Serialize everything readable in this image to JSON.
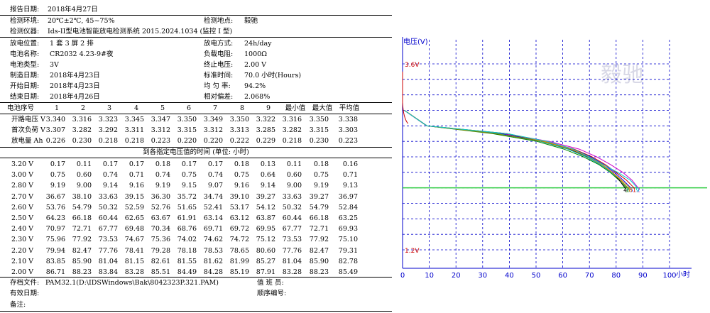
{
  "header": {
    "report_date": {
      "label": "报告日期:",
      "value": "2018年4月27日"
    },
    "env": {
      "label": "检测环境:",
      "value": "20℃±2℃, 45~75%"
    },
    "location": {
      "label": "检测地点:",
      "value": "毅驰"
    },
    "instrument": {
      "label": "检测仪器:",
      "value": "Ids-II型电池智能放电检测系统 2015.2024.1034 (监控 I 型)"
    }
  },
  "info": {
    "left": [
      {
        "label": "放电位置:",
        "value": "1 套 3 屏 2 排"
      },
      {
        "label": "电池名称:",
        "value": "CR2032 4.23-9#夜"
      },
      {
        "label": "电池类型:",
        "value": "3V"
      },
      {
        "label": "制造日期:",
        "value": "2018年4月23日"
      },
      {
        "label": "开始日期:",
        "value": "2018年4月23日"
      },
      {
        "label": "结束日期:",
        "value": "2018年4月26日"
      }
    ],
    "right": [
      {
        "label": "放电方式:",
        "value": "24h/day"
      },
      {
        "label": "负载电阻:",
        "value": "1000Ω"
      },
      {
        "label": "终止电压:",
        "value": "2.00 V"
      },
      {
        "label": "标准时间:",
        "value": "70.0 小时(Hours)"
      },
      {
        "label": "均 匀 率:",
        "value": "94.2%"
      },
      {
        "label": "相对偏差:",
        "value": "2.068%"
      }
    ]
  },
  "battery_table": {
    "header": [
      "电池序号",
      "1",
      "2",
      "3",
      "4",
      "5",
      "6",
      "7",
      "8",
      "9",
      "最小值",
      "最大值",
      "平均值"
    ],
    "rows": [
      [
        "开路电压 V",
        "3.340",
        "3.316",
        "3.323",
        "3.345",
        "3.347",
        "3.350",
        "3.349",
        "3.350",
        "3.322",
        "3.316",
        "3.350",
        "3.338"
      ],
      [
        "首次负荷 V",
        "3.307",
        "3.282",
        "3.292",
        "3.311",
        "3.312",
        "3.315",
        "3.312",
        "3.313",
        "3.285",
        "3.282",
        "3.315",
        "3.303"
      ],
      [
        "放电量  Ah",
        "0.226",
        "0.230",
        "0.218",
        "0.218",
        "0.223",
        "0.220",
        "0.220",
        "0.222",
        "0.229",
        "0.218",
        "0.230",
        "0.223"
      ]
    ]
  },
  "time_table": {
    "title": "到各指定电压值的时间 (单位: 小时)",
    "rows": [
      [
        "3.20 V",
        "0.17",
        "0.11",
        "0.17",
        "0.17",
        "0.18",
        "0.17",
        "0.17",
        "0.18",
        "0.13",
        "0.11",
        "0.18",
        "0.16"
      ],
      [
        "3.00 V",
        "0.75",
        "0.60",
        "0.74",
        "0.71",
        "0.74",
        "0.75",
        "0.74",
        "0.75",
        "0.64",
        "0.60",
        "0.75",
        "0.71"
      ],
      [
        "2.80 V",
        "9.19",
        "9.00",
        "9.14",
        "9.16",
        "9.19",
        "9.15",
        "9.07",
        "9.16",
        "9.14",
        "9.00",
        "9.19",
        "9.13"
      ],
      [
        "2.70 V",
        "36.67",
        "38.10",
        "33.63",
        "39.15",
        "36.30",
        "35.72",
        "34.74",
        "39.10",
        "39.27",
        "33.63",
        "39.27",
        "36.97"
      ],
      [
        "2.60 V",
        "53.76",
        "54.79",
        "50.32",
        "52.59",
        "52.76",
        "51.65",
        "52.41",
        "53.17",
        "54.12",
        "50.32",
        "54.79",
        "52.84"
      ],
      [
        "2.50 V",
        "64.23",
        "66.18",
        "60.44",
        "62.65",
        "63.67",
        "61.91",
        "63.14",
        "63.12",
        "63.87",
        "60.44",
        "66.18",
        "63.25"
      ],
      [
        "2.40 V",
        "70.97",
        "72.71",
        "67.77",
        "69.48",
        "70.34",
        "68.76",
        "69.71",
        "69.72",
        "69.95",
        "67.77",
        "72.71",
        "69.93"
      ],
      [
        "2.30 V",
        "75.96",
        "77.92",
        "73.53",
        "74.67",
        "75.36",
        "74.02",
        "74.62",
        "74.72",
        "75.12",
        "73.53",
        "77.92",
        "75.10"
      ],
      [
        "2.20 V",
        "79.94",
        "82.47",
        "77.76",
        "78.41",
        "79.28",
        "78.18",
        "78.53",
        "78.65",
        "80.60",
        "77.76",
        "82.47",
        "79.31"
      ],
      [
        "2.10 V",
        "83.85",
        "85.90",
        "81.04",
        "81.15",
        "82.61",
        "81.55",
        "81.62",
        "81.99",
        "85.27",
        "81.04",
        "85.90",
        "82.78"
      ],
      [
        "2.00 V",
        "86.71",
        "88.23",
        "83.84",
        "83.28",
        "85.51",
        "84.49",
        "84.28",
        "85.19",
        "87.91",
        "83.28",
        "88.23",
        "85.49"
      ]
    ]
  },
  "footer": {
    "file": {
      "label": "存档文件:",
      "value": "PAM32.1(D:\\IDSWindows\\Bak\\8042323P.321.PAM)"
    },
    "valid_date": {
      "label": "有效日期:",
      "value": ""
    },
    "notes": {
      "label": "备注:",
      "value": ""
    },
    "duty": {
      "label": "值 班 员:",
      "value": ""
    },
    "seq": {
      "label": "顺序编号:",
      "value": ""
    }
  },
  "chart_data": {
    "type": "line",
    "ylabel": "电压(V)",
    "xlabel": "小时",
    "xticks": [
      "0",
      "10",
      "20",
      "30",
      "40",
      "50",
      "60",
      "70",
      "80",
      "90",
      "100"
    ],
    "xlim": [
      0,
      100
    ],
    "ylim": [
      1.2,
      3.6
    ],
    "y_markers": [
      "3.6V",
      "1.2V"
    ],
    "cutoff_line": {
      "y": 2.0,
      "color": "#2ecc40"
    },
    "watermark": "毅驰",
    "colors": {
      "axis": "#0000cc",
      "grid": "#0000cc",
      "marker": "#cc0000",
      "cutoff": "#2ecc40"
    },
    "series": [
      {
        "color": "#cc0000",
        "values": [
          [
            0,
            3.31
          ],
          [
            0.75,
            3.0
          ],
          [
            9.19,
            2.8
          ],
          [
            36.67,
            2.7
          ],
          [
            53.76,
            2.6
          ],
          [
            64.23,
            2.5
          ],
          [
            70.97,
            2.4
          ],
          [
            75.96,
            2.3
          ],
          [
            79.94,
            2.2
          ],
          [
            83.85,
            2.1
          ],
          [
            86.71,
            2.0
          ]
        ]
      },
      {
        "color": "#cc00cc",
        "values": [
          [
            0,
            3.28
          ],
          [
            0.6,
            3.0
          ],
          [
            9.0,
            2.8
          ],
          [
            38.1,
            2.7
          ],
          [
            54.79,
            2.6
          ],
          [
            66.18,
            2.5
          ],
          [
            72.71,
            2.4
          ],
          [
            77.92,
            2.3
          ],
          [
            82.47,
            2.2
          ],
          [
            85.9,
            2.1
          ],
          [
            88.23,
            2.0
          ]
        ]
      },
      {
        "color": "#008800",
        "values": [
          [
            0,
            3.29
          ],
          [
            0.74,
            3.0
          ],
          [
            9.14,
            2.8
          ],
          [
            33.63,
            2.7
          ],
          [
            50.32,
            2.6
          ],
          [
            60.44,
            2.5
          ],
          [
            67.77,
            2.4
          ],
          [
            73.53,
            2.3
          ],
          [
            77.76,
            2.2
          ],
          [
            81.04,
            2.1
          ],
          [
            83.84,
            2.0
          ]
        ]
      },
      {
        "color": "#000000",
        "values": [
          [
            0,
            3.31
          ],
          [
            0.71,
            3.0
          ],
          [
            9.16,
            2.8
          ],
          [
            39.15,
            2.7
          ],
          [
            52.59,
            2.6
          ],
          [
            62.65,
            2.5
          ],
          [
            69.48,
            2.4
          ],
          [
            74.67,
            2.3
          ],
          [
            78.41,
            2.2
          ],
          [
            81.15,
            2.1
          ],
          [
            83.28,
            2.0
          ]
        ]
      },
      {
        "color": "#0000ff",
        "values": [
          [
            0,
            3.31
          ],
          [
            0.74,
            3.0
          ],
          [
            9.19,
            2.8
          ],
          [
            36.3,
            2.7
          ],
          [
            52.76,
            2.6
          ],
          [
            63.67,
            2.5
          ],
          [
            70.34,
            2.4
          ],
          [
            75.36,
            2.3
          ],
          [
            79.28,
            2.2
          ],
          [
            82.61,
            2.1
          ],
          [
            85.51,
            2.0
          ]
        ]
      },
      {
        "color": "#00aaaa",
        "values": [
          [
            0,
            3.32
          ],
          [
            0.75,
            3.0
          ],
          [
            9.15,
            2.8
          ],
          [
            35.72,
            2.7
          ],
          [
            51.65,
            2.6
          ],
          [
            61.91,
            2.5
          ],
          [
            68.76,
            2.4
          ],
          [
            74.02,
            2.3
          ],
          [
            78.18,
            2.2
          ],
          [
            81.55,
            2.1
          ],
          [
            84.49,
            2.0
          ]
        ]
      },
      {
        "color": "#888800",
        "values": [
          [
            0,
            3.31
          ],
          [
            0.74,
            3.0
          ],
          [
            9.07,
            2.8
          ],
          [
            34.74,
            2.7
          ],
          [
            52.41,
            2.6
          ],
          [
            63.14,
            2.5
          ],
          [
            69.71,
            2.4
          ],
          [
            74.62,
            2.3
          ],
          [
            78.53,
            2.2
          ],
          [
            81.62,
            2.1
          ],
          [
            84.28,
            2.0
          ]
        ]
      },
      {
        "color": "#ff8800",
        "values": [
          [
            0,
            3.31
          ],
          [
            0.75,
            3.0
          ],
          [
            9.16,
            2.8
          ],
          [
            39.1,
            2.7
          ],
          [
            53.17,
            2.6
          ],
          [
            63.12,
            2.5
          ],
          [
            69.72,
            2.4
          ],
          [
            74.72,
            2.3
          ],
          [
            78.65,
            2.2
          ],
          [
            81.99,
            2.1
          ],
          [
            85.19,
            2.0
          ]
        ]
      },
      {
        "color": "#00cccc",
        "values": [
          [
            0,
            3.29
          ],
          [
            0.64,
            3.0
          ],
          [
            9.14,
            2.8
          ],
          [
            39.27,
            2.7
          ],
          [
            54.12,
            2.6
          ],
          [
            63.87,
            2.5
          ],
          [
            69.95,
            2.4
          ],
          [
            75.12,
            2.3
          ],
          [
            80.6,
            2.2
          ],
          [
            85.27,
            2.1
          ],
          [
            87.91,
            2.0
          ]
        ]
      }
    ]
  }
}
